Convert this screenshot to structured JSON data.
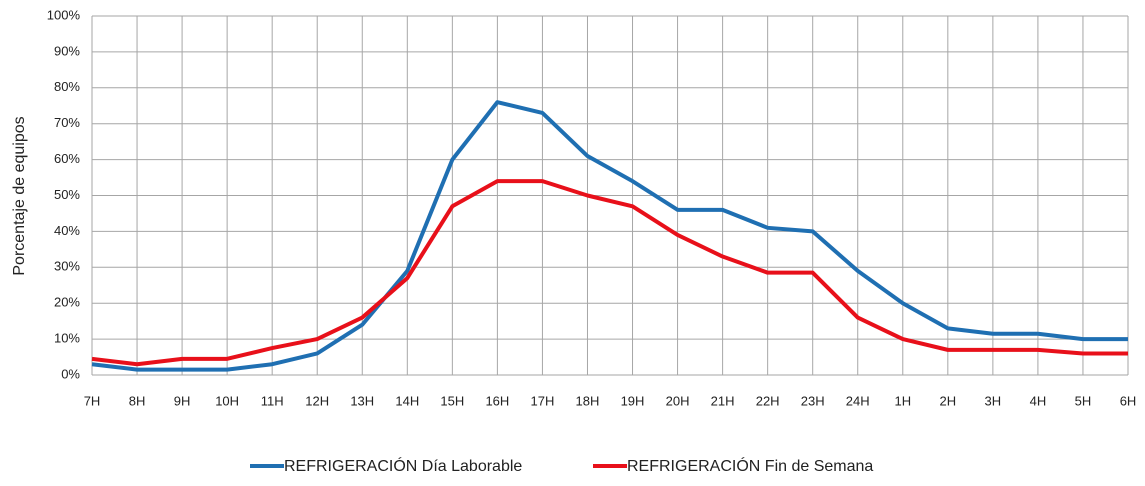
{
  "chart_data": {
    "type": "line",
    "y_label": "Porcentaje de equipos",
    "categories": [
      "7H",
      "8H",
      "9H",
      "10H",
      "11H",
      "12H",
      "13H",
      "14H",
      "15H",
      "16H",
      "17H",
      "18H",
      "19H",
      "20H",
      "21H",
      "22H",
      "23H",
      "24H",
      "1H",
      "2H",
      "3H",
      "4H",
      "5H",
      "6H"
    ],
    "series": [
      {
        "name": "REFRIGERACIÓN Día Laborable",
        "color": "#1f6fb2",
        "values": [
          3,
          1.5,
          1.5,
          1.5,
          3,
          6,
          14,
          29,
          60,
          76,
          73,
          61,
          54,
          46,
          46,
          41,
          40,
          29,
          20,
          13,
          11.5,
          11.5,
          10,
          10
        ]
      },
      {
        "name": "REFRIGERACIÓN Fin de Semana",
        "color": "#e8101a",
        "values": [
          4.5,
          3,
          4.5,
          4.5,
          7.5,
          10,
          16,
          27,
          47,
          54,
          54,
          50,
          47,
          39,
          33,
          28.5,
          28.5,
          16,
          10,
          7,
          7,
          7,
          6,
          6
        ]
      }
    ],
    "ylim": [
      0,
      100
    ],
    "yticks": [
      {
        "value": 0,
        "label": "0%"
      },
      {
        "value": 10,
        "label": "10%"
      },
      {
        "value": 20,
        "label": "20%"
      },
      {
        "value": 30,
        "label": "30%"
      },
      {
        "value": 40,
        "label": "40%"
      },
      {
        "value": 50,
        "label": "50%"
      },
      {
        "value": 60,
        "label": "60%"
      },
      {
        "value": 70,
        "label": "70%"
      },
      {
        "value": 80,
        "label": "80%"
      },
      {
        "value": 90,
        "label": "90%"
      },
      {
        "value": 100,
        "label": "100%"
      }
    ],
    "grid": true
  }
}
